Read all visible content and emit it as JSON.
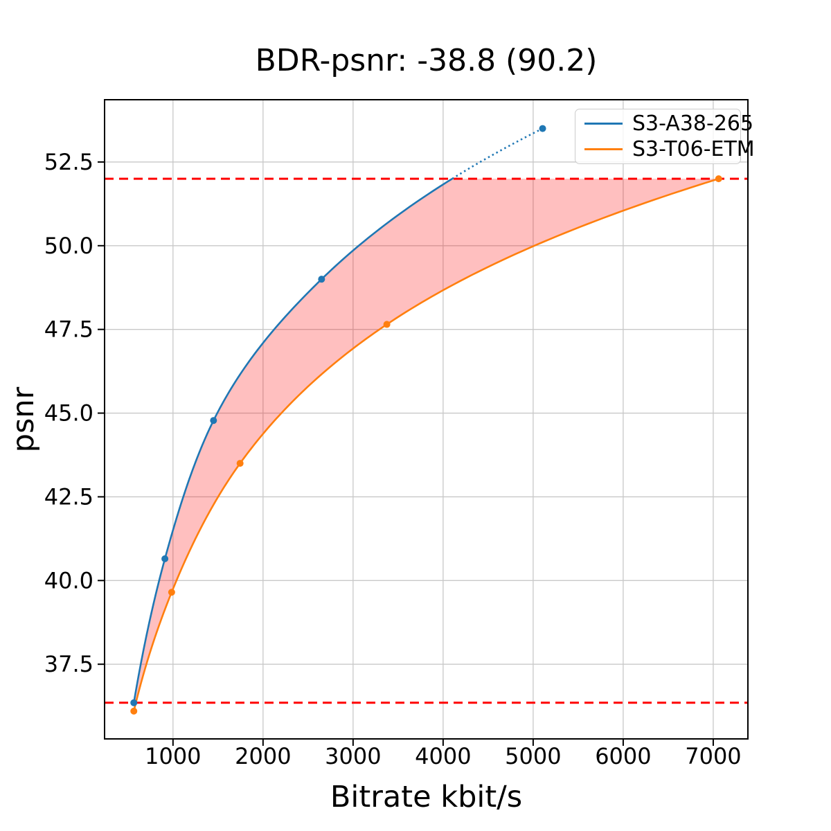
{
  "title": "BDR-psnr: -38.8 (90.2)",
  "chart_data": {
    "type": "line",
    "title": "BDR-psnr: -38.8 (90.2)",
    "xlabel": "Bitrate kbit/s",
    "ylabel": "psnr",
    "xlim": [
      240,
      7385
    ],
    "ylim": [
      35.27,
      54.36
    ],
    "xticks": [
      1000,
      2000,
      3000,
      4000,
      5000,
      6000,
      7000
    ],
    "xtick_labels": [
      "1000",
      "2000",
      "3000",
      "4000",
      "5000",
      "6000",
      "7000"
    ],
    "yticks": [
      37.5,
      40.0,
      42.5,
      45.0,
      47.5,
      50.0,
      52.5
    ],
    "ytick_labels": [
      "37.5",
      "40.0",
      "42.5",
      "45.0",
      "47.5",
      "50.0",
      "52.5"
    ],
    "grid": true,
    "grid_color": "#c8c8c8",
    "legend_position": "upper right",
    "interpolation": "pchip-log-x",
    "series": [
      {
        "name": "S3-A38-265",
        "color": "#1f77b4",
        "x": [
          565,
          910,
          1450,
          2650,
          5105
        ],
        "y": [
          36.35,
          40.65,
          44.78,
          49.0,
          53.5
        ],
        "note": "drawn dotted above overlap high bound"
      },
      {
        "name": "S3-T06-ETM",
        "color": "#ff7f0e",
        "x": [
          565,
          985,
          1745,
          3375,
          7060
        ],
        "y": [
          36.1,
          39.65,
          43.5,
          47.65,
          52.0
        ]
      }
    ],
    "overlap_lines": {
      "style": "dashed",
      "color": "#ff0000",
      "low": 36.35,
      "high": 52.0
    },
    "fill_between_color": "rgba(255,0,0,0.25)"
  }
}
